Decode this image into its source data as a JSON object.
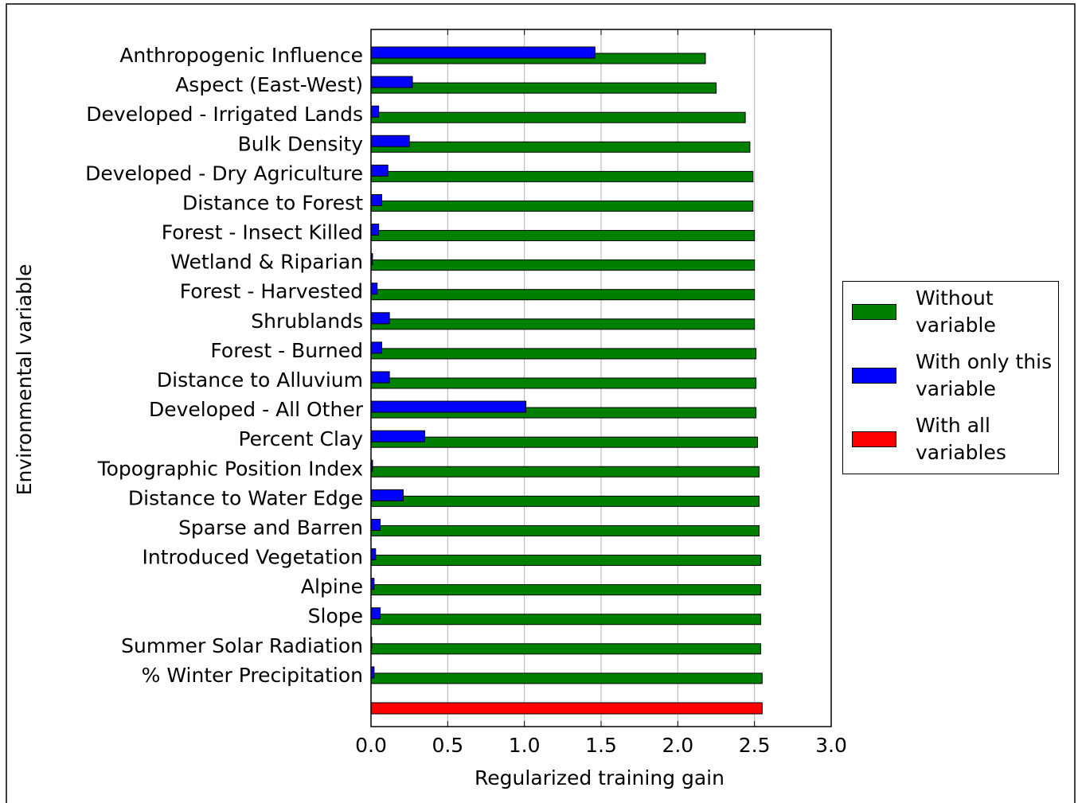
{
  "chart_data": {
    "type": "bar",
    "orientation": "horizontal",
    "xlabel": "Regularized training gain",
    "ylabel": "Environmental variable",
    "categories": [
      "Anthropogenic Influence",
      "Aspect (East-West)",
      "Developed - Irrigated Lands",
      "Bulk Density",
      "Developed - Dry Agriculture",
      "Distance to Forest",
      "Forest - Insect Killed",
      "Wetland & Riparian",
      "Forest - Harvested",
      "Shrublands",
      "Forest - Burned",
      "Distance to Alluvium",
      "Developed - All Other",
      "Percent Clay",
      "Topographic Position Index",
      "Distance to Water Edge",
      "Sparse and Barren",
      "Introduced Vegetation",
      "Alpine",
      "Slope",
      "Summer Solar Radiation",
      "% Winter Precipitation",
      null
    ],
    "series": [
      {
        "name": "Without variable",
        "color": "#008000",
        "values": [
          2.18,
          2.25,
          2.44,
          2.47,
          2.49,
          2.49,
          2.5,
          2.5,
          2.5,
          2.5,
          2.51,
          2.51,
          2.51,
          2.52,
          2.53,
          2.53,
          2.53,
          2.54,
          2.54,
          2.54,
          2.54,
          2.55,
          null
        ]
      },
      {
        "name": "With only this variable",
        "color": "#0000ff",
        "values": [
          1.46,
          0.27,
          0.05,
          0.25,
          0.11,
          0.07,
          0.05,
          0.01,
          0.04,
          0.12,
          0.07,
          0.12,
          1.01,
          0.35,
          0.01,
          0.21,
          0.06,
          0.03,
          0.02,
          0.06,
          0.005,
          0.02,
          null
        ]
      },
      {
        "name": "With all variables",
        "color": "#ff0000",
        "values": [
          null,
          null,
          null,
          null,
          null,
          null,
          null,
          null,
          null,
          null,
          null,
          null,
          null,
          null,
          null,
          null,
          null,
          null,
          null,
          null,
          null,
          null,
          2.55
        ]
      }
    ],
    "xlim": [
      0,
      3.0
    ],
    "xticks": [
      {
        "value": 0,
        "label": "0.0"
      },
      {
        "value": 0.5,
        "label": "0.5"
      },
      {
        "value": 1,
        "label": "1.0"
      },
      {
        "value": 1.5,
        "label": "1.5"
      },
      {
        "value": 2,
        "label": "2.0"
      },
      {
        "value": 2.5,
        "label": "2.5"
      },
      {
        "value": 3,
        "label": "3.0"
      }
    ],
    "grid": true,
    "legend": "right"
  }
}
